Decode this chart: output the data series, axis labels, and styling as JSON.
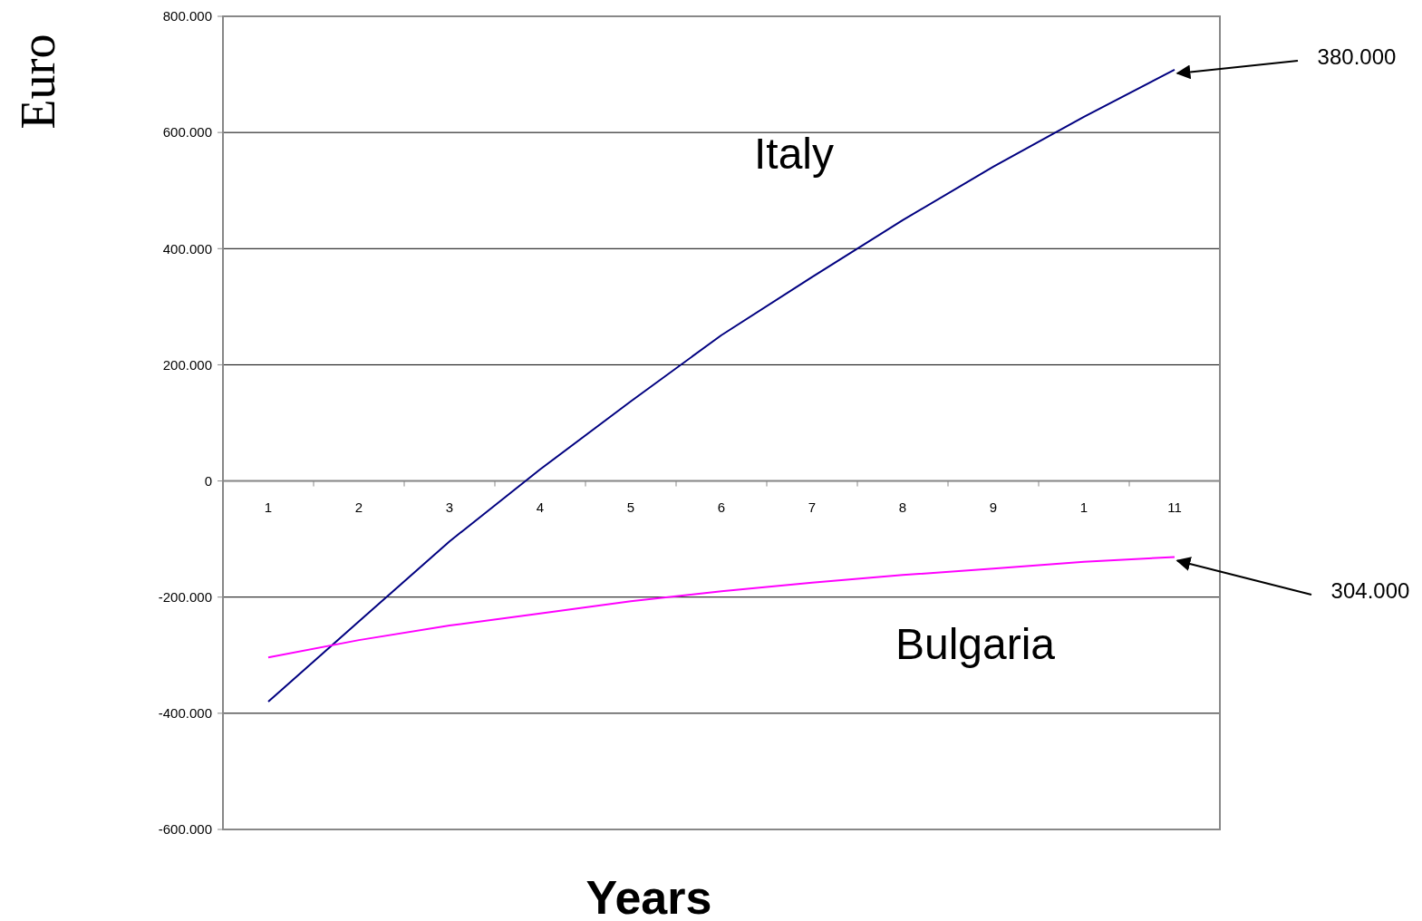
{
  "chart_data": {
    "type": "line",
    "xlabel": "Years",
    "ylabel": "Euro",
    "categories": [
      "1",
      "2",
      "3",
      "4",
      "5",
      "6",
      "7",
      "8",
      "9",
      "1",
      "11"
    ],
    "series": [
      {
        "name": "Italy",
        "color": "#000080",
        "values": [
          -380000,
          -242000,
          -104000,
          20000,
          137000,
          251000,
          351000,
          449000,
          541000,
          627000,
          708000
        ]
      },
      {
        "name": "Bulgaria",
        "color": "#ff00ff",
        "values": [
          -304000,
          -274000,
          -249000,
          -228000,
          -207000,
          -190000,
          -175000,
          -162000,
          -151000,
          -139000,
          -131000
        ]
      }
    ],
    "ylim": [
      -600000,
      800000
    ],
    "yticks": [
      {
        "value": -600000,
        "label": "-600.000"
      },
      {
        "value": -400000,
        "label": "-400.000"
      },
      {
        "value": -200000,
        "label": "-200.000"
      },
      0,
      {
        "value": 200000,
        "label": "200.000"
      },
      {
        "value": 400000,
        "label": "400.000"
      },
      {
        "value": 600000,
        "label": "600.000"
      },
      {
        "value": 800000,
        "label": "800.000"
      }
    ],
    "grid": "y",
    "marker": "none",
    "line_style": "solid",
    "annotations": [
      {
        "text": "380.000",
        "x": "11",
        "y": 708000
      },
      {
        "text": "304.000",
        "x": "11",
        "y": -131000
      }
    ]
  }
}
